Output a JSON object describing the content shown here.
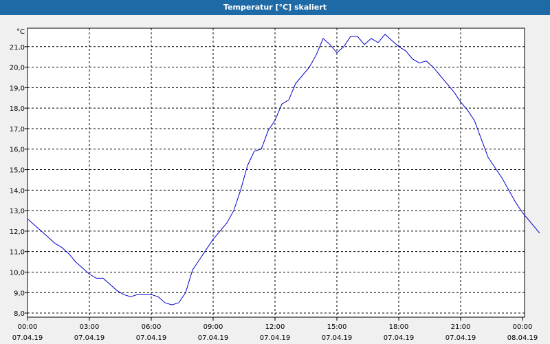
{
  "window": {
    "title": "Temperatur [°C] skaliert"
  },
  "chart_data": {
    "type": "line",
    "unit_label": "°C",
    "grid": true,
    "xlim": [
      "07.04.19 00:00",
      "08.04.19 00:00"
    ],
    "ylim": [
      7.8,
      21.9
    ],
    "y_ticks": [
      "21,0",
      "20,0",
      "19,0",
      "18,0",
      "17,0",
      "16,0",
      "15,0",
      "14,0",
      "13,0",
      "12,0",
      "11,0",
      "10,0",
      "9,0",
      "8,0"
    ],
    "x_ticks": [
      {
        "time": "00:00",
        "date": "07.04.19"
      },
      {
        "time": "03:00",
        "date": "07.04.19"
      },
      {
        "time": "06:00",
        "date": "07.04.19"
      },
      {
        "time": "09:00",
        "date": "07.04.19"
      },
      {
        "time": "12:00",
        "date": "07.04.19"
      },
      {
        "time": "15:00",
        "date": "07.04.19"
      },
      {
        "time": "18:00",
        "date": "07.04.19"
      },
      {
        "time": "21:00",
        "date": "07.04.19"
      },
      {
        "time": "00:00",
        "date": "08.04.19"
      }
    ],
    "series": [
      {
        "color": "#0000cc",
        "points": [
          [
            "07.04.19 00:00",
            12.6
          ],
          [
            "07.04.19 00:20",
            12.3
          ],
          [
            "07.04.19 00:40",
            12.0
          ],
          [
            "07.04.19 01:00",
            11.7
          ],
          [
            "07.04.19 01:20",
            11.4
          ],
          [
            "07.04.19 01:40",
            11.2
          ],
          [
            "07.04.19 02:00",
            10.9
          ],
          [
            "07.04.19 02:20",
            10.5
          ],
          [
            "07.04.19 02:40",
            10.2
          ],
          [
            "07.04.19 03:00",
            9.9
          ],
          [
            "07.04.19 03:20",
            9.7
          ],
          [
            "07.04.19 03:40",
            9.7
          ],
          [
            "07.04.19 04:00",
            9.4
          ],
          [
            "07.04.19 04:20",
            9.1
          ],
          [
            "07.04.19 04:40",
            8.9
          ],
          [
            "07.04.19 05:00",
            8.8
          ],
          [
            "07.04.19 05:20",
            8.9
          ],
          [
            "07.04.19 05:40",
            8.9
          ],
          [
            "07.04.19 06:00",
            8.9
          ],
          [
            "07.04.19 06:20",
            8.8
          ],
          [
            "07.04.19 06:40",
            8.5
          ],
          [
            "07.04.19 07:00",
            8.4
          ],
          [
            "07.04.19 07:20",
            8.5
          ],
          [
            "07.04.19 07:40",
            9.0
          ],
          [
            "07.04.19 08:00",
            10.1
          ],
          [
            "07.04.19 08:20",
            10.6
          ],
          [
            "07.04.19 08:40",
            11.1
          ],
          [
            "07.04.19 09:00",
            11.6
          ],
          [
            "07.04.19 09:20",
            12.0
          ],
          [
            "07.04.19 09:40",
            12.4
          ],
          [
            "07.04.19 10:00",
            13.0
          ],
          [
            "07.04.19 10:20",
            14.0
          ],
          [
            "07.04.19 10:40",
            15.2
          ],
          [
            "07.04.19 11:00",
            15.9
          ],
          [
            "07.04.19 11:20",
            16.0
          ],
          [
            "07.04.19 11:40",
            16.9
          ],
          [
            "07.04.19 12:00",
            17.4
          ],
          [
            "07.04.19 12:20",
            18.2
          ],
          [
            "07.04.19 12:40",
            18.4
          ],
          [
            "07.04.19 13:00",
            19.2
          ],
          [
            "07.04.19 13:20",
            19.6
          ],
          [
            "07.04.19 13:40",
            20.0
          ],
          [
            "07.04.19 14:00",
            20.6
          ],
          [
            "07.04.19 14:20",
            21.4
          ],
          [
            "07.04.19 14:40",
            21.1
          ],
          [
            "07.04.19 15:00",
            20.7
          ],
          [
            "07.04.19 15:20",
            21.0
          ],
          [
            "07.04.19 15:40",
            21.5
          ],
          [
            "07.04.19 16:00",
            21.5
          ],
          [
            "07.04.19 16:20",
            21.1
          ],
          [
            "07.04.19 16:40",
            21.4
          ],
          [
            "07.04.19 17:00",
            21.2
          ],
          [
            "07.04.19 17:20",
            21.6
          ],
          [
            "07.04.19 17:40",
            21.3
          ],
          [
            "07.04.19 18:00",
            21.0
          ],
          [
            "07.04.19 18:20",
            20.8
          ],
          [
            "07.04.19 18:40",
            20.4
          ],
          [
            "07.04.19 19:00",
            20.2
          ],
          [
            "07.04.19 19:20",
            20.3
          ],
          [
            "07.04.19 19:40",
            20.0
          ],
          [
            "07.04.19 20:00",
            19.6
          ],
          [
            "07.04.19 20:20",
            19.2
          ],
          [
            "07.04.19 20:40",
            18.8
          ],
          [
            "07.04.19 21:00",
            18.3
          ],
          [
            "07.04.19 21:20",
            17.9
          ],
          [
            "07.04.19 21:40",
            17.4
          ],
          [
            "07.04.19 22:00",
            16.5
          ],
          [
            "07.04.19 22:20",
            15.6
          ],
          [
            "07.04.19 22:40",
            15.1
          ],
          [
            "07.04.19 23:00",
            14.6
          ],
          [
            "07.04.19 23:20",
            14.0
          ],
          [
            "07.04.19 23:40",
            13.4
          ],
          [
            "08.04.19 00:00",
            12.9
          ],
          [
            "08.04.19 00:20",
            12.5
          ],
          [
            "08.04.19 00:40",
            12.1
          ],
          [
            "08.04.19 00:50",
            11.9
          ]
        ]
      }
    ]
  }
}
